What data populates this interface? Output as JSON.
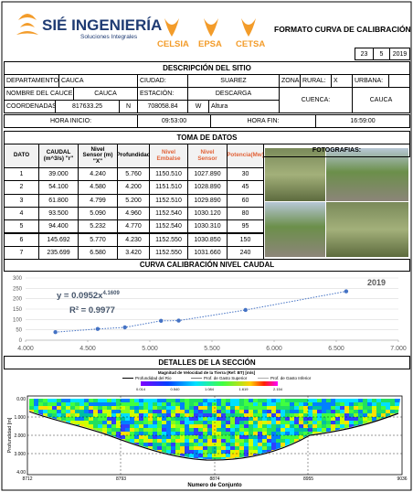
{
  "header": {
    "company": "SIÉ INGENIERÍA",
    "tagline": "Soluciones Integrales",
    "brands": [
      "CELSIA",
      "EPSA",
      "CETSA"
    ],
    "form_title": "FORMATO CURVA DE CALIBRACIÓN",
    "date": [
      "23",
      "5",
      "2019"
    ]
  },
  "site": {
    "title": "DESCRIPCIÓN DEL SITIO",
    "rows": [
      [
        "DEPARTAMENTO:",
        "CAUCA",
        "CIUDAD:",
        "SUAREZ",
        "ZONA:",
        "RURAL:",
        "X",
        "URBANA:"
      ],
      [
        "NOMBRE DEL CAUCE:",
        "CAUCA",
        "ESTACIÓN:",
        "DESCARGA",
        "CUENCA:",
        "CAUCA"
      ],
      [
        "COORDENADAS:",
        "817633.25",
        "N",
        "708058.84",
        "W",
        "Altura"
      ],
      [
        "HORA INICIO:",
        "09:53:00",
        "HORA FIN:",
        "16:59:00"
      ]
    ]
  },
  "data_table": {
    "title": "TOMA DE DATOS",
    "columns": [
      "DATO",
      "CAUDAL (m^3/s) \"r\"",
      "Nivel Sensor (m) \"X\"",
      "Profundidad",
      "Nivel Embalse",
      "Nivel Sensor",
      "Potencia(Mw)"
    ],
    "photos_label": "FOTOGRAFIAS:",
    "rows": [
      [
        "1",
        "39.000",
        "4.240",
        "5.760",
        "1150.510",
        "1027.890",
        "30"
      ],
      [
        "2",
        "54.100",
        "4.580",
        "4.200",
        "1151.510",
        "1028.890",
        "45"
      ],
      [
        "3",
        "61.800",
        "4.799",
        "5.200",
        "1152.510",
        "1029.890",
        "60"
      ],
      [
        "4",
        "93.500",
        "5.090",
        "4.960",
        "1152.540",
        "1030.120",
        "80"
      ],
      [
        "5",
        "94.400",
        "5.232",
        "4.770",
        "1152.540",
        "1030.310",
        "95"
      ],
      [
        "6",
        "145.692",
        "5.770",
        "4.230",
        "1152.550",
        "1030.850",
        "150"
      ],
      [
        "7",
        "235.699",
        "6.580",
        "3.420",
        "1152.550",
        "1031.660",
        "240"
      ]
    ]
  },
  "chart_data": {
    "type": "scatter",
    "title": "CURVA CALIBRACIÓN NIVEL CAUDAL",
    "x": [
      4.24,
      4.58,
      4.799,
      5.09,
      5.232,
      5.77,
      6.58
    ],
    "series": [
      {
        "name": "2019",
        "color": "#4472c4",
        "values": [
          39,
          54.1,
          61.8,
          93.5,
          94.4,
          145.692,
          235.699
        ]
      }
    ],
    "trendline": {
      "equation": "y = 0.0952x",
      "exponent": "4.1609",
      "r2": "R² = 0.9977"
    },
    "xlim": [
      4,
      7
    ],
    "xticks": [
      {
        "value": 4,
        "label": "4.000"
      },
      {
        "value": 4.5,
        "label": "4.500"
      },
      {
        "value": 5,
        "label": "5.000"
      },
      {
        "value": 5.5,
        "label": "5.500"
      },
      {
        "value": 6,
        "label": "6.000"
      },
      {
        "value": 6.5,
        "label": "6.500"
      },
      {
        "value": 7,
        "label": "7.000"
      }
    ],
    "ylim": [
      0,
      300
    ],
    "yticks": [
      0,
      50,
      100,
      150,
      200,
      250,
      300
    ],
    "grid": true
  },
  "section": {
    "title": "DETALLES DE LA SECCIÓN",
    "plot_title": "Magnitud de Velocidad de la Tierra (Ref: BT) [m/s]",
    "legend": [
      "Profundidad del Rio",
      "Prof. de Gasto Superior",
      "Prof. de Gasto Inferior"
    ],
    "colorbar_ticks": [
      "0.014",
      "0.540",
      "1.084",
      "1.619",
      "2.154"
    ],
    "y_ticks": [
      "0.00",
      "1.000",
      "2.000",
      "3.000",
      "4.00"
    ],
    "y_label": "Profundidad [m]",
    "x_ticks": [
      "8712",
      "8793",
      "8874",
      "8955",
      "9036"
    ],
    "x_label": "Numero de Conjunto"
  }
}
